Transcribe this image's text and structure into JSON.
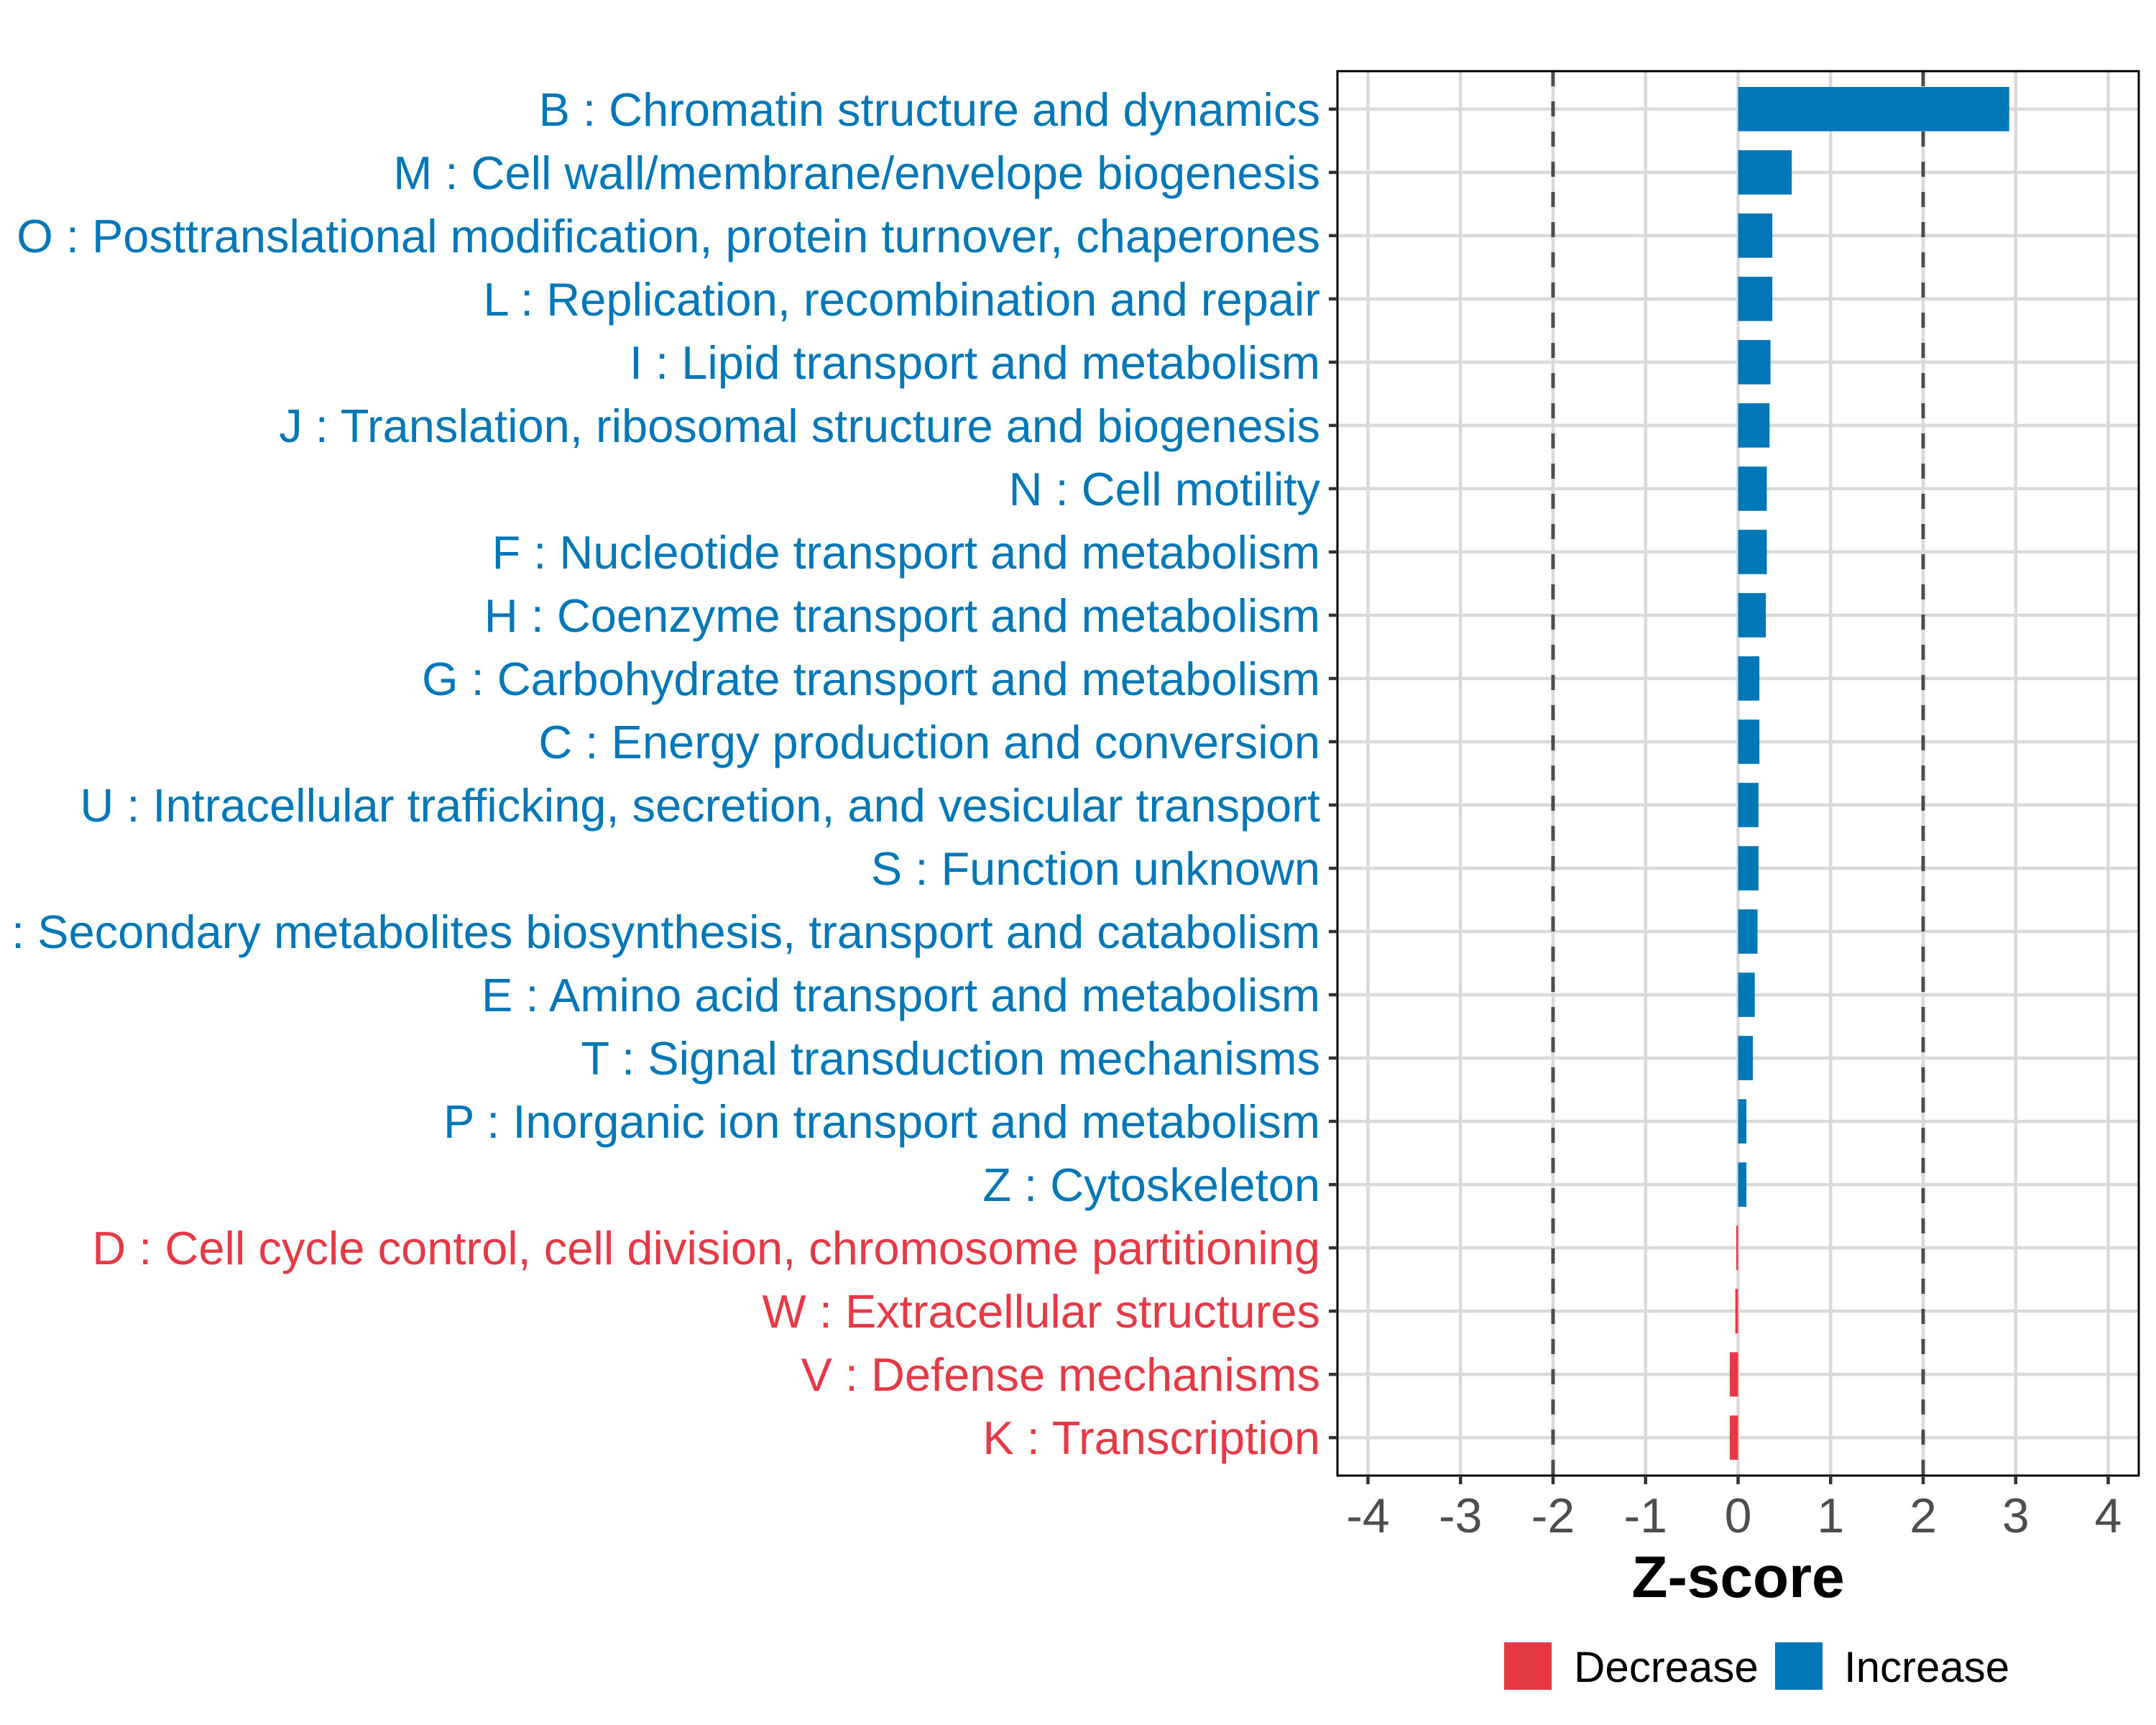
{
  "chart_data": {
    "type": "bar",
    "orientation": "horizontal",
    "title": "",
    "xlabel": "Z-score",
    "ylabel": "",
    "xlim": [
      -4.33,
      4.33
    ],
    "xticks": [
      -4,
      -3,
      -2,
      -1,
      0,
      1,
      2,
      3,
      4
    ],
    "xtick_labels": [
      "-4",
      "-3",
      "-2",
      "-1",
      "0",
      "1",
      "2",
      "3",
      "4"
    ],
    "grid": true,
    "reference_lines": [
      {
        "x": -2,
        "style": "dashed",
        "color": "#4d4d4d"
      },
      {
        "x": 2,
        "style": "dashed",
        "color": "#4d4d4d"
      }
    ],
    "categories": [
      "B : Chromatin structure and dynamics",
      "M : Cell wall/membrane/envelope biogenesis",
      "O : Posttranslational modification, protein turnover, chaperones",
      "L : Replication, recombination and repair",
      "I : Lipid transport and metabolism",
      "J : Translation, ribosomal structure and biogenesis",
      "N : Cell motility",
      "F : Nucleotide transport and metabolism",
      "H : Coenzyme transport and metabolism",
      "G : Carbohydrate transport and metabolism",
      "C : Energy production and conversion",
      "U : Intracellular trafficking, secretion, and vesicular transport",
      "S : Function unknown",
      "Q : Secondary metabolites biosynthesis, transport and catabolism",
      "E : Amino acid transport and metabolism",
      "T : Signal transduction mechanisms",
      "P : Inorganic ion transport and metabolism",
      "Z : Cytoskeleton",
      "D : Cell cycle control, cell division, chromosome partitioning",
      "W : Extracellular structures",
      "V : Defense mechanisms",
      "K : Transcription"
    ],
    "values": [
      2.93,
      0.58,
      0.37,
      0.37,
      0.35,
      0.34,
      0.31,
      0.31,
      0.3,
      0.23,
      0.23,
      0.22,
      0.22,
      0.21,
      0.18,
      0.16,
      0.09,
      0.09,
      -0.02,
      -0.03,
      -0.09,
      -0.09
    ],
    "groups": [
      "Increase",
      "Increase",
      "Increase",
      "Increase",
      "Increase",
      "Increase",
      "Increase",
      "Increase",
      "Increase",
      "Increase",
      "Increase",
      "Increase",
      "Increase",
      "Increase",
      "Increase",
      "Increase",
      "Increase",
      "Increase",
      "Decrease",
      "Decrease",
      "Decrease",
      "Decrease"
    ],
    "legend": {
      "position": "bottom",
      "entries": [
        {
          "label": "Decrease",
          "color": "#E63946"
        },
        {
          "label": "Increase",
          "color": "#0077B6"
        }
      ]
    },
    "colors": {
      "Increase": "#0077B6",
      "Decrease": "#E63946"
    }
  }
}
